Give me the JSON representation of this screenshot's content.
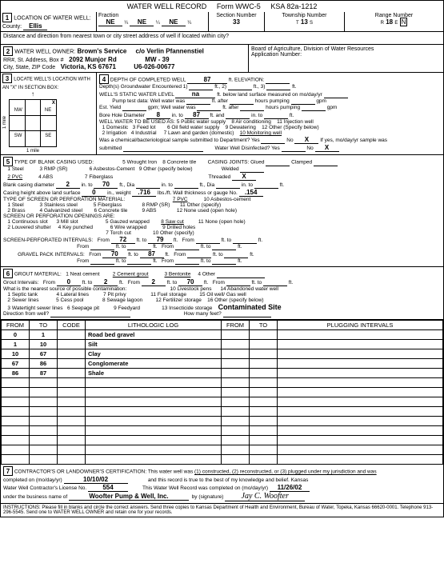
{
  "form": {
    "title": "WATER WELL RECORD",
    "form_no": "Form WWC-5",
    "ksa": "KSA 82a-1212"
  },
  "loc": {
    "header": "LOCATION OF WATER WELL:",
    "county_lbl": "County:",
    "county": "Ellis",
    "fraction_lbl": "Fraction",
    "f1": "NE",
    "q1": "¼",
    "f2": "NE",
    "q2": "¼",
    "f3": "NE",
    "q3": "¼",
    "section_lbl": "Section Number",
    "section": "33",
    "township_lbl": "Township Number",
    "township_t": "T",
    "township": "13",
    "township_s": "S",
    "range_lbl": "Range Number",
    "range_r": "R",
    "range": "18",
    "range_e": "E",
    "dist_lbl": "Distance and direction from nearest town or city street address of well if located within city?"
  },
  "owner": {
    "header": "WATER WELL OWNER:",
    "name": "Brown's Service",
    "co": "c/o Verlin Pfannenstiel",
    "addr_lbl": "RR#, St. Address, Box #",
    "addr": "2092 Munjor Rd",
    "mw": "MW - 39",
    "city_lbl": "City, State, ZIP Code",
    "city": "Victoria, KS 67671",
    "app": "U6-026-00677",
    "board": "Board of Agriculture, Division of Water Resources",
    "appnum_lbl": "Application Number:"
  },
  "sec3": {
    "header": "LOCATE WELL'S LOCATION WITH AN \"X\" IN SECTION BOX:",
    "nw": "NW",
    "ne": "NE",
    "sw": "SW",
    "se": "SE",
    "x": "X",
    "arrow": "↑",
    "mile": "1 mile"
  },
  "sec4": {
    "depth_lbl": "DEPTH OF COMPLETED WELL",
    "depth": "87",
    "ft_elev": "ft. ELEVATION:",
    "gw_lbl": "Depth(s) Groundwater Encountered",
    "gw1": "1)",
    "gw2": "ft., 2)",
    "gw3": "ft., 3)",
    "gw_ft": "ft.",
    "static_lbl": "WELL'S STATIC WATER LEVEL",
    "static": "na",
    "static_suffix": "ft. below land surface measured on mo/day/yr",
    "pump_lbl": "Pump test data:",
    "pump1": "Well water was",
    "pump2": "ft. after",
    "pump3": "hours pumping",
    "pump4": "gpm",
    "est_lbl": "Est. Yield",
    "est1": "gpm;",
    "est2": "Well water was",
    "est3": "ft. after",
    "est4": "hours pumping",
    "est5": "gpm",
    "bore_lbl": "Bore Hole Diameter",
    "bore": "8",
    "bore_in": "in. to",
    "bore_ft": "87",
    "bore_suffix": "ft. and",
    "bore2": "in. to",
    "bore3": "ft.",
    "use_lbl": "WELL WATER TO BE USED AS:",
    "u1": "1  Domestic",
    "u3": "3  Feed lot",
    "u5": "5  Public water supply",
    "u8": "8  Air conditioning",
    "u11": "11  Injection well",
    "u2": "2  Irrigation",
    "u4": "4  Industrial",
    "u6": "6  Oil field water supply",
    "u9": "9  Dewatering",
    "u12": "12  Other (Specify below)",
    "u7": "7  Lawn and garden (domestic)",
    "u10": "10  Monitoring well",
    "chem_lbl": "Was a chemical/bacteriological sample submitted to Department? Yes",
    "chem_no": "No",
    "chem_x": "X",
    "chem_suffix": "If yes, mo/day/yr sample was",
    "submitted": "submitted",
    "disinf": "Water Well Disinfected?  Yes",
    "disinf_no": "No",
    "disinf_x": "X"
  },
  "sec5": {
    "header": "TYPE OF BLANK CASING USED:",
    "c1": "1  Steel",
    "c3": "3  RMP (SR)",
    "c5": "5  Wrought Iron",
    "c8": "8  Concrete tile",
    "joints_lbl": "CASING JOINTS: Glued",
    "clamped": "Clamped",
    "c2": "2  PVC",
    "c4": "4  ABS",
    "c6": "6  Asbestos-Cement",
    "c9": "9  Other (specify below)",
    "welded": "Welded",
    "c7": "7  Fiberglass",
    "threaded": "Threaded",
    "thr_x": "X",
    "blank_lbl": "Blank casing diameter",
    "blank_dia": "2",
    "blank_in": "in. to",
    "blank_ft": "70",
    "blank_suffix": "ft., Dia",
    "blank_in2": "in. to",
    "blank_suffix2": "ft., Dia",
    "blank_in3": "in. to",
    "blank_ft3": "ft.",
    "height_lbl": "Casing height above land surface",
    "height": "0",
    "height_in": "in., weight",
    "weight": ".716",
    "weight_suffix": "lbs./ft.  Wall thickness or gauge No.",
    "gauge": ".154",
    "screen_hdr": "TYPE OF SCREEN OR PERFORATION MATERIAL:",
    "s1": "1  Steel",
    "s3": "3  Stainless steel",
    "s5": "5  Fiberglass",
    "s7": "7  PVC",
    "s10": "10  Asbestos-cement",
    "s2": "2  Brass",
    "s4": "4  Galvanized steel",
    "s6": "6  Concrete tile",
    "s8": "8  RMP (SR)",
    "s11": "11  Other (specify)",
    "s9": "9  ABS",
    "s12": "12  None used (open hole)",
    "open_hdr": "SCREEN OR PERFORATION OPENINGS ARE:",
    "o1": "1  Continuous slot",
    "o3": "3  Mill slot",
    "o5": "5  Gauzed wrapped",
    "o8": "8  Saw cut",
    "o11": "11  None (open hole)",
    "o2": "2  Louvered shutter",
    "o4": "4  Key punched",
    "o6": "6  Wire wrapped",
    "o9": "9  Drilled holes",
    "o7": "7  Torch cut",
    "o10": "10  Other (specify)",
    "perf_lbl": "SCREEN-PERFORATED INTERVALS:",
    "from": "From",
    "to": "ft. to",
    "ft": "ft.",
    "perf_from": "72",
    "perf_to": "79",
    "grav_lbl": "GRAVEL PACK INTERVALS:",
    "grav_from": "70",
    "grav_to": "87"
  },
  "sec6": {
    "header": "GROUT MATERIAL:",
    "g1": "1  Neat cement",
    "g2": "2  Cement grout",
    "g3": "3 Bentonite",
    "g4": "4  Other",
    "gi_lbl": "Grout Intervals:",
    "from_lbl": "From",
    "gi_from": "0",
    "to_lbl": "ft. to",
    "gi_to": "2",
    "ft": "ft.",
    "gi_from2": "2",
    "gi_to2": "70",
    "contam_lbl": "What is the nearest source of possible contamination:",
    "p1": "1  Septic tank",
    "p4": "4  Lateral lines",
    "p7": "7  Pit privy",
    "p10": "10  Livestock pens",
    "p14": "14  Abandoned water well",
    "p2": "2  Sewer lines",
    "p5": "5  Cess pool",
    "p8": "8  Sewage lagoon",
    "p11": "11  Fuel storage",
    "p15": "15  Oil well/ Gas well",
    "p3": "3  Watertight sewer lines",
    "p6": "6  Seepage pit",
    "p9": "9  Feedyard",
    "p12": "12  Fertilizer storage",
    "p16": "16  Other (specify below)",
    "p13": "13  Insecticide storage",
    "contam": "Contaminated Site",
    "dir_lbl": "Direction from well?",
    "feet_lbl": "How many feet?"
  },
  "log": {
    "h_from": "FROM",
    "h_to": "TO",
    "h_code": "CODE",
    "h_lith": "LITHOLOGIC LOG",
    "h_from2": "FROM",
    "h_to2": "TO",
    "h_plug": "PLUGGING INTERVALS",
    "rows": [
      {
        "from": "0",
        "to": "1",
        "lith": "Road bed gravel"
      },
      {
        "from": "1",
        "to": "10",
        "lith": "Silt"
      },
      {
        "from": "10",
        "to": "67",
        "lith": "Clay"
      },
      {
        "from": "67",
        "to": "86",
        "lith": "Conglomerate"
      },
      {
        "from": "86",
        "to": "87",
        "lith": "Shale"
      }
    ]
  },
  "sec7": {
    "cert": "CONTRACTOR'S OR LANDOWNER'S CERTIFICATION:  This water well was",
    "opts": "(1) constructed, (2) reconstructed, or (3) plugged under my jurisdiction and was",
    "comp_lbl": "completed on (mo/day/yr)",
    "comp": "10/10/02",
    "true": "and this record is true to the best of my knowledge and belief.  Kansas",
    "lic_lbl": "Water Well Contractor's License No.",
    "lic": "554",
    "rec_lbl": "This Water Well Record was completed on (mo/day/yr)",
    "rec": "11/26/02",
    "bus_lbl": "under the business name of",
    "bus": "Woofter Pump & Well, Inc.",
    "by": "by (signature)",
    "sig": "Jay C. Woofter"
  },
  "instr": "INSTRUCTIONS:  Please fill in blanks and circle the correct answers.  Send three copies to Kansas Department of Health and Environment, Bureau of Water, Topeka, Kansas 66620-0001.  Telephone  913-296-5545.  Send one to WATER WELL OWNER and retain one for your records."
}
